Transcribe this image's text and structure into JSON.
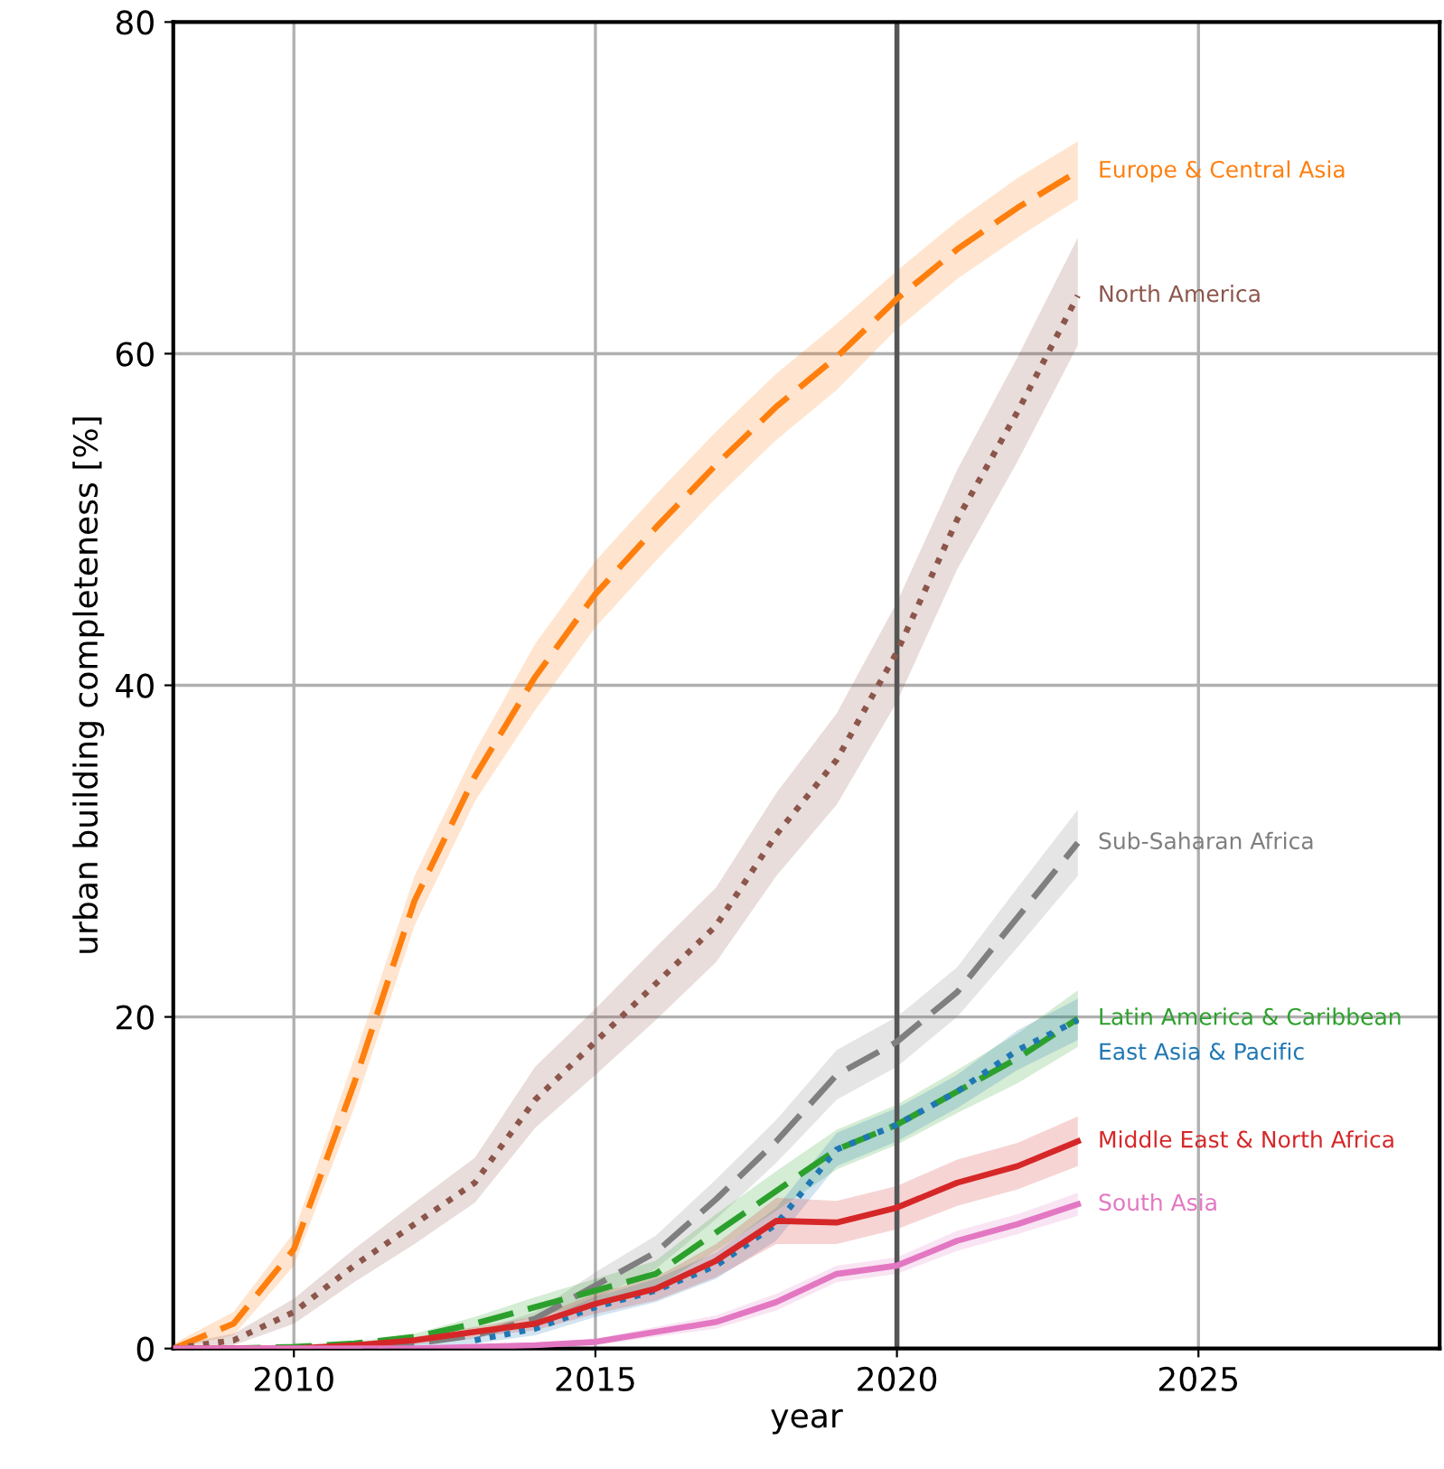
{
  "chart_data": {
    "type": "line",
    "xlabel": "year",
    "ylabel": "urban building completeness [%]",
    "x": [
      2008,
      2009,
      2010,
      2011,
      2012,
      2013,
      2014,
      2015,
      2016,
      2017,
      2018,
      2019,
      2020,
      2021,
      2022,
      2023
    ],
    "xlim": [
      2008,
      2029
    ],
    "xticks": [
      2010,
      2015,
      2020,
      2025
    ],
    "ylim": [
      0,
      80
    ],
    "yticks": [
      0,
      20,
      40,
      60,
      80
    ],
    "grid": true,
    "legend": false,
    "ref_lines": [
      {
        "axis": "x",
        "value": 2020,
        "color": "#555555"
      }
    ],
    "series": [
      {
        "name": "Europe & Central Asia",
        "color": "#ff7f0e",
        "line_style": "dashed",
        "values": [
          0,
          1.5,
          6,
          16,
          27,
          34.5,
          40.5,
          45.5,
          49.5,
          53.3,
          56.8,
          59.8,
          63.3,
          66.3,
          68.8,
          71
        ],
        "lower": [
          0,
          0.8,
          5,
          14.5,
          25.5,
          33,
          38.5,
          43.5,
          47.5,
          51.3,
          54.8,
          57.8,
          61.5,
          64.5,
          67,
          69.3
        ],
        "upper": [
          0.3,
          2.2,
          7,
          17.5,
          28.5,
          36,
          42.5,
          47.5,
          51.5,
          55.3,
          58.8,
          61.8,
          65,
          68,
          70.6,
          72.8
        ]
      },
      {
        "name": "North America",
        "color": "#8c564b",
        "line_style": "dotted",
        "values": [
          0,
          0.5,
          2.2,
          5,
          7.5,
          10,
          15,
          18.5,
          22,
          25.5,
          31,
          35.5,
          42,
          50,
          56.5,
          63.5
        ],
        "lower": [
          0,
          0.2,
          1.5,
          4,
          6.3,
          8.8,
          13.3,
          16.5,
          19.8,
          23.3,
          28.5,
          32.8,
          39,
          47,
          53.5,
          60.5
        ],
        "upper": [
          0.2,
          0.9,
          3,
          6,
          8.8,
          11.5,
          17,
          20.5,
          24.2,
          27.8,
          33.5,
          38.3,
          45,
          53,
          59.8,
          67
        ]
      },
      {
        "name": "Sub-Saharan Africa",
        "color": "#7f7f7f",
        "line_style": "dashed",
        "values": [
          0,
          0,
          0,
          0.1,
          0.3,
          0.8,
          1.8,
          3.8,
          5.8,
          9,
          12.5,
          16.5,
          18.5,
          21.5,
          26,
          30.5
        ],
        "lower": [
          0,
          0,
          0,
          0,
          0.2,
          0.6,
          1.4,
          3,
          4.8,
          7.8,
          11.2,
          15,
          17,
          20,
          24.2,
          28.5
        ],
        "upper": [
          0,
          0,
          0.1,
          0.2,
          0.4,
          1,
          2.2,
          4.6,
          6.8,
          10.2,
          13.8,
          18,
          20,
          23,
          27.8,
          32.5
        ]
      },
      {
        "name": "Latin America & Caribbean",
        "color": "#2ca02c",
        "line_style": "dashed",
        "values": [
          0,
          0,
          0.1,
          0.3,
          0.7,
          1.5,
          2.5,
          3.5,
          4.5,
          7,
          9.5,
          12,
          13.5,
          15.5,
          17.5,
          19.9
        ],
        "lower": [
          0,
          0,
          0,
          0.2,
          0.5,
          1.1,
          1.9,
          2.8,
          3.7,
          5.9,
          8.3,
          10.8,
          12.3,
          14.2,
          16,
          18.2
        ],
        "upper": [
          0,
          0,
          0.2,
          0.4,
          0.9,
          1.9,
          3.1,
          4.2,
          5.3,
          8.1,
          10.7,
          13.2,
          14.7,
          16.8,
          19,
          21.6
        ]
      },
      {
        "name": "East Asia & Pacific",
        "color": "#1f77b4",
        "line_style": "dotted",
        "values": [
          null,
          null,
          null,
          null,
          null,
          0.5,
          1.2,
          2.5,
          3.5,
          5,
          7.5,
          12,
          13.5,
          15.5,
          18,
          19.8
        ],
        "lower": [
          0,
          0,
          0,
          0,
          0.1,
          0.3,
          0.8,
          1.9,
          2.8,
          4.2,
          6.5,
          11,
          12.5,
          14.5,
          16.8,
          18.6
        ],
        "upper": [
          0,
          0,
          0,
          0.2,
          0.3,
          0.7,
          1.6,
          3.1,
          4.2,
          5.8,
          8.5,
          13,
          14.5,
          16.5,
          19.2,
          21.1
        ]
      },
      {
        "name": "Middle East & North Africa",
        "color": "#d62728",
        "line_style": "solid",
        "values": [
          0,
          0,
          0,
          0.2,
          0.5,
          1,
          1.5,
          2.7,
          3.6,
          5.3,
          7.7,
          7.6,
          8.5,
          10,
          11,
          12.5
        ],
        "lower": [
          0,
          0,
          0,
          0.1,
          0.3,
          0.7,
          1.1,
          2.1,
          2.9,
          4.3,
          6.3,
          6.3,
          7.2,
          8.6,
          9.6,
          11
        ],
        "upper": [
          0,
          0,
          0.1,
          0.3,
          0.7,
          1.3,
          1.9,
          3.3,
          4.3,
          6.3,
          9.1,
          8.9,
          9.8,
          11.4,
          12.4,
          14
        ]
      },
      {
        "name": "South Asia",
        "color": "#e377c2",
        "line_style": "solid",
        "values": [
          0,
          0,
          0,
          0,
          0,
          0.1,
          0.2,
          0.4,
          1,
          1.6,
          2.8,
          4.5,
          5,
          6.5,
          7.5,
          8.7
        ],
        "lower": [
          0,
          0,
          0,
          0,
          0,
          0,
          0.1,
          0.2,
          0.7,
          1.2,
          2.3,
          4,
          4.5,
          5.9,
          6.9,
          8
        ],
        "upper": [
          0,
          0,
          0,
          0,
          0,
          0.2,
          0.3,
          0.6,
          1.3,
          2,
          3.3,
          5,
          5.5,
          7.1,
          8.1,
          9.4
        ]
      }
    ]
  }
}
